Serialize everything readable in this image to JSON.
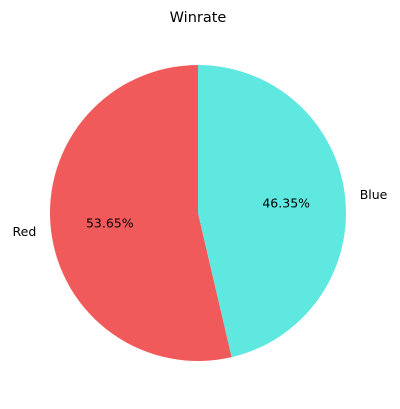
{
  "chart_data": {
    "type": "pie",
    "title": "Winrate",
    "slices": [
      {
        "label": "Red",
        "value": 53.65,
        "display": "53.65%",
        "color": "#F15A5A"
      },
      {
        "label": "Blue",
        "value": 46.35,
        "display": "46.35%",
        "color": "#5EE8E0"
      }
    ],
    "start_angle_deg": 90,
    "direction": "counterclockwise",
    "legend": "none"
  }
}
